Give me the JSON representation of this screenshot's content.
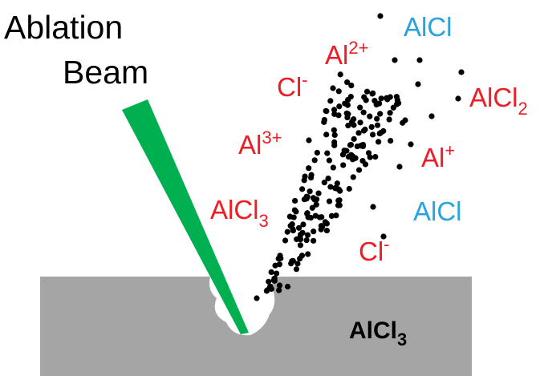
{
  "beam_label": [
    "Ablation",
    "Beam"
  ],
  "surface_label": {
    "base": "AlCl",
    "sub": "3"
  },
  "species": [
    {
      "base": "AlCl"
    },
    {
      "base": "Al",
      "sup": "2+"
    },
    {
      "base": "Cl",
      "sup": "-"
    },
    {
      "base": "AlCl",
      "sub": "2"
    },
    {
      "base": "Al",
      "sup": "3+"
    },
    {
      "base": "Al",
      "sup": "+"
    },
    {
      "base": "AlCl",
      "sub": "3"
    },
    {
      "base": "AlCl"
    },
    {
      "base": "Cl",
      "sup": "-"
    }
  ]
}
